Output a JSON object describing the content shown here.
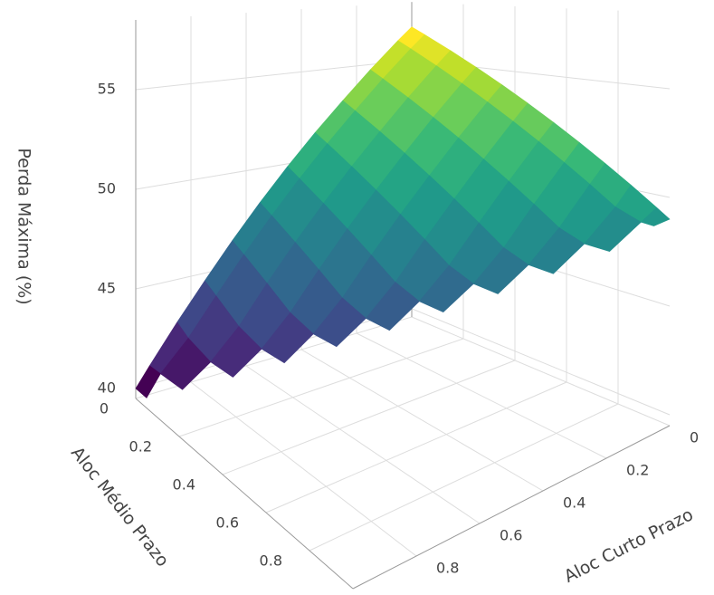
{
  "chart_data": {
    "type": "surface",
    "xlabel": "Aloc Curto Prazo",
    "ylabel": "Aloc Médio Prazo",
    "zlabel": "Perda Máxima (%)",
    "x": [
      0,
      0.1,
      0.2,
      0.3,
      0.4,
      0.5,
      0.6,
      0.7,
      0.8,
      0.9,
      1
    ],
    "y": [
      0,
      0.1,
      0.2,
      0.3,
      0.4,
      0.5,
      0.6,
      0.7,
      0.8,
      0.9,
      1
    ],
    "z": [
      [
        57,
        55.5,
        53.9,
        52.3,
        50.7,
        49,
        47.3,
        45.5,
        43.7,
        41.9,
        40
      ],
      [
        56.2,
        54.7,
        53.1,
        51.5,
        49.9,
        48.2,
        46.5,
        44.7,
        42.9,
        41.1,
        null
      ],
      [
        55.4,
        53.9,
        52.3,
        50.7,
        49.1,
        47.4,
        45.7,
        43.9,
        42.1,
        null,
        null
      ],
      [
        54.6,
        53.1,
        51.5,
        49.9,
        48.3,
        46.6,
        44.9,
        43.1,
        null,
        null,
        null
      ],
      [
        53.8,
        52.3,
        50.7,
        49.1,
        47.5,
        45.8,
        44.1,
        null,
        null,
        null,
        null
      ],
      [
        53,
        51.5,
        49.9,
        48.3,
        46.7,
        45,
        null,
        null,
        null,
        null,
        null
      ],
      [
        52.2,
        50.7,
        49.1,
        47.5,
        45.9,
        null,
        null,
        null,
        null,
        null,
        null
      ],
      [
        51.4,
        49.9,
        48.3,
        46.7,
        null,
        null,
        null,
        null,
        null,
        null,
        null
      ],
      [
        50.6,
        49.1,
        47.5,
        null,
        null,
        null,
        null,
        null,
        null,
        null,
        null
      ],
      [
        49.8,
        48.3,
        null,
        null,
        null,
        null,
        null,
        null,
        null,
        null,
        null
      ],
      [
        49,
        null,
        null,
        null,
        null,
        null,
        null,
        null,
        null,
        null,
        null
      ]
    ],
    "xlim": [
      0,
      1
    ],
    "ylim": [
      0,
      1
    ],
    "zlim": [
      39.5,
      58.5
    ],
    "xticks": [
      0,
      0.2,
      0.4,
      0.6,
      0.8
    ],
    "yticks": [
      0,
      0.2,
      0.4,
      0.6,
      0.8
    ],
    "zticks": [
      40,
      45,
      50,
      55
    ],
    "grid": true,
    "colorscale": [
      "#440154",
      "#482878",
      "#3e4989",
      "#31688e",
      "#26828e",
      "#1f9e89",
      "#35b779",
      "#6ece58",
      "#b5de2b",
      "#fde725"
    ]
  }
}
